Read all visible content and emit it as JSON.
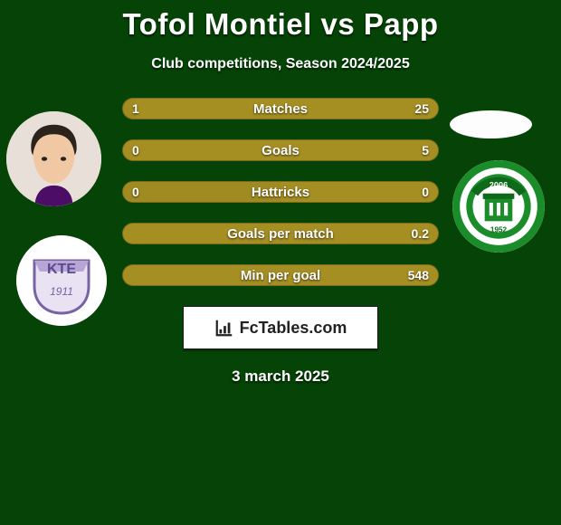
{
  "title": "Tofol Montiel vs Papp",
  "subtitle": "Club competitions, Season 2024/2025",
  "date": "3 march 2025",
  "brand": "FcTables.com",
  "colors": {
    "background": "#054406",
    "bar_left_default": "#a08a22",
    "bar_right_default": "#a58e22",
    "bar_border": "#7c6a19",
    "bar_track": "#9e8820",
    "text": "#ffffff"
  },
  "stats": [
    {
      "label": "Matches",
      "left_value": "1",
      "right_value": "25",
      "left_pct": 4,
      "right_pct": 96,
      "left_color": "#a08a22",
      "right_color": "#a58e22"
    },
    {
      "label": "Goals",
      "left_value": "0",
      "right_value": "5",
      "left_pct": 0,
      "right_pct": 100,
      "left_color": "#a08a22",
      "right_color": "#a58e22"
    },
    {
      "label": "Hattricks",
      "left_value": "0",
      "right_value": "0",
      "left_pct": 50,
      "right_pct": 50,
      "left_color": "#a08a22",
      "right_color": "#a58e22"
    },
    {
      "label": "Goals per match",
      "left_value": "",
      "right_value": "0.2",
      "left_pct": 0,
      "right_pct": 100,
      "left_color": "#a08a22",
      "right_color": "#a58e22"
    },
    {
      "label": "Min per goal",
      "left_value": "",
      "right_value": "548",
      "left_pct": 0,
      "right_pct": 100,
      "left_color": "#a08a22",
      "right_color": "#a58e22"
    }
  ],
  "player1_face": {
    "skin": "#f0c9a4",
    "hair": "#2c231d"
  },
  "club1_badge": {
    "shield": "#b7a5d6",
    "shield_border": "#7764a3",
    "text": "KTE",
    "year": "1911"
  },
  "club2_badge": {
    "outer": "#1a8d2a",
    "inner": "#ffffff",
    "arc": "#0e6a1a",
    "year": "2006",
    "founded": "1952"
  }
}
